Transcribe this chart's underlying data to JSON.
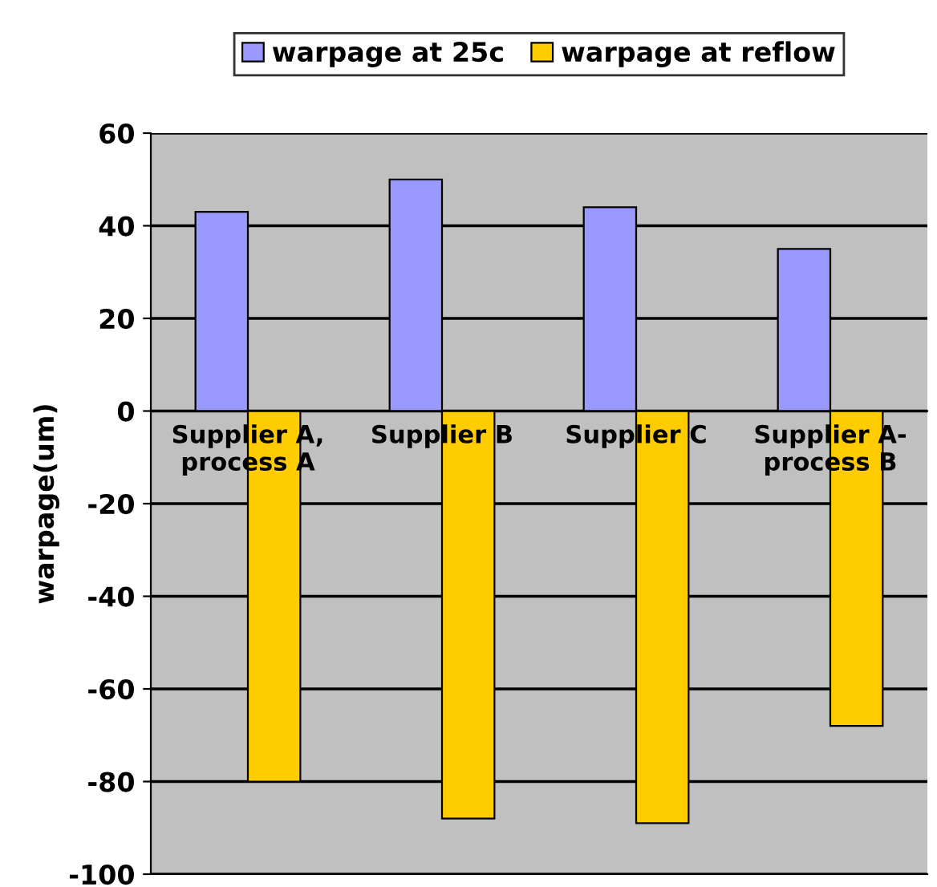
{
  "chart_data": {
    "type": "bar",
    "categories": [
      "Supplier A,\nprocess A",
      "Supplier B",
      "Supplier C",
      "Supplier A-\nprocess B"
    ],
    "ylabel": "warpage(um)",
    "ylim": [
      -100,
      60
    ],
    "yticks": [
      -100,
      -80,
      -60,
      -40,
      -20,
      0,
      20,
      40,
      60
    ],
    "grid": "y",
    "legend": "top",
    "series": [
      {
        "name": "warpage at 25c",
        "color": "#9999ff",
        "values": [
          43,
          50,
          44,
          35
        ]
      },
      {
        "name": "warpage at reflow",
        "color": "#ffcc00",
        "values": [
          -80,
          -88,
          -89,
          -68
        ]
      }
    ]
  }
}
